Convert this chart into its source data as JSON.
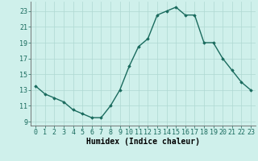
{
  "x": [
    0,
    1,
    2,
    3,
    4,
    5,
    6,
    7,
    8,
    9,
    10,
    11,
    12,
    13,
    14,
    15,
    16,
    17,
    18,
    19,
    20,
    21,
    22,
    23
  ],
  "y": [
    13.5,
    12.5,
    12.0,
    11.5,
    10.5,
    10.0,
    9.5,
    9.5,
    11.0,
    13.0,
    16.0,
    18.5,
    19.5,
    22.5,
    23.0,
    23.5,
    22.5,
    22.5,
    19.0,
    19.0,
    17.0,
    15.5,
    14.0,
    13.0
  ],
  "line_color": "#1a6b5e",
  "marker": "D",
  "marker_size": 1.8,
  "bg_color": "#cff0eb",
  "grid_color": "#aed8d2",
  "xlabel": "Humidex (Indice chaleur)",
  "ylim": [
    8.5,
    24.2
  ],
  "xlim": [
    -0.5,
    23.5
  ],
  "yticks": [
    9,
    11,
    13,
    15,
    17,
    19,
    21,
    23
  ],
  "xticks": [
    0,
    1,
    2,
    3,
    4,
    5,
    6,
    7,
    8,
    9,
    10,
    11,
    12,
    13,
    14,
    15,
    16,
    17,
    18,
    19,
    20,
    21,
    22,
    23
  ],
  "xtick_labels": [
    "0",
    "1",
    "2",
    "3",
    "4",
    "5",
    "6",
    "7",
    "8",
    "9",
    "10",
    "11",
    "12",
    "13",
    "14",
    "15",
    "16",
    "17",
    "18",
    "19",
    "20",
    "21",
    "22",
    "23"
  ],
  "tick_fontsize": 6.0,
  "xlabel_fontsize": 7.0,
  "linewidth": 1.0
}
